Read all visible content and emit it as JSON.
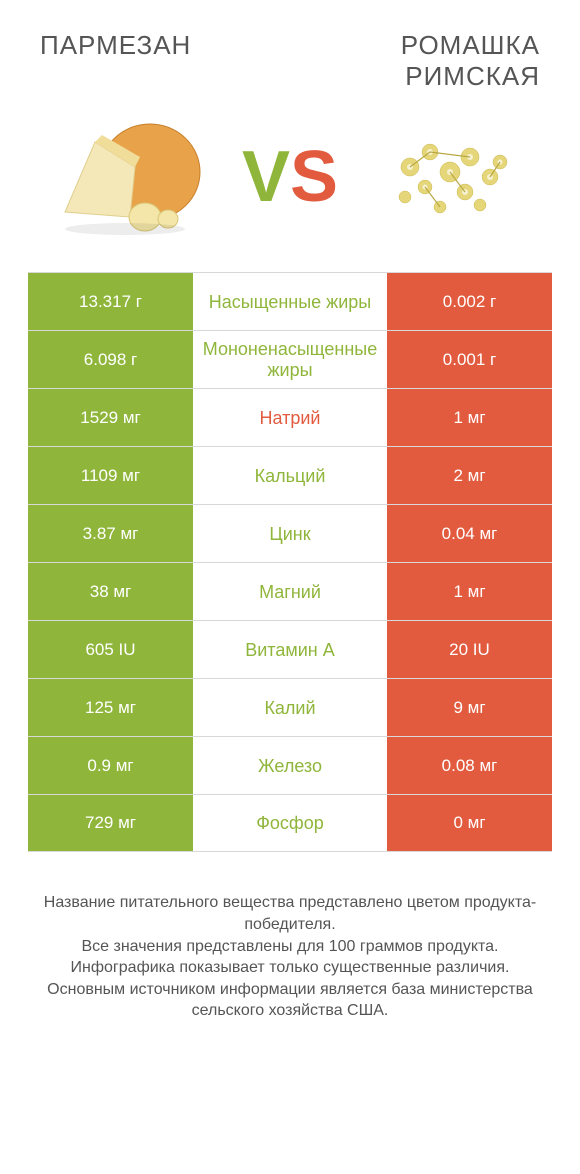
{
  "colors": {
    "green": "#8fb63b",
    "orange": "#e25b3f",
    "text": "#555555",
    "border": "#d8d8d8",
    "background": "#ffffff"
  },
  "header": {
    "left_title": "ПАРМЕЗАН",
    "right_title_line1": "РОМАШКА",
    "right_title_line2": "РИМСКАЯ",
    "vs_v": "V",
    "vs_s": "S"
  },
  "rows": [
    {
      "left": "13.317 г",
      "label": "Насыщенные жиры",
      "right": "0.002 г",
      "winner": "left"
    },
    {
      "left": "6.098 г",
      "label": "Мононенасыщенные жиры",
      "right": "0.001 г",
      "winner": "left"
    },
    {
      "left": "1529 мг",
      "label": "Натрий",
      "right": "1 мг",
      "winner": "right"
    },
    {
      "left": "1109 мг",
      "label": "Кальций",
      "right": "2 мг",
      "winner": "left"
    },
    {
      "left": "3.87 мг",
      "label": "Цинк",
      "right": "0.04 мг",
      "winner": "left"
    },
    {
      "left": "38 мг",
      "label": "Магний",
      "right": "1 мг",
      "winner": "left"
    },
    {
      "left": "605 IU",
      "label": "Витамин A",
      "right": "20 IU",
      "winner": "left"
    },
    {
      "left": "125 мг",
      "label": "Калий",
      "right": "9 мг",
      "winner": "left"
    },
    {
      "left": "0.9 мг",
      "label": "Железо",
      "right": "0.08 мг",
      "winner": "left"
    },
    {
      "left": "729 мг",
      "label": "Фосфор",
      "right": "0 мг",
      "winner": "left"
    }
  ],
  "footer": {
    "line1": "Название питательного вещества представлено цветом продукта-победителя.",
    "line2": "Все значения представлены для 100 граммов продукта.",
    "line3": "Инфографика показывает только существенные различия.",
    "line4": "Основным источником информации является база министерства сельского хозяйства США."
  }
}
